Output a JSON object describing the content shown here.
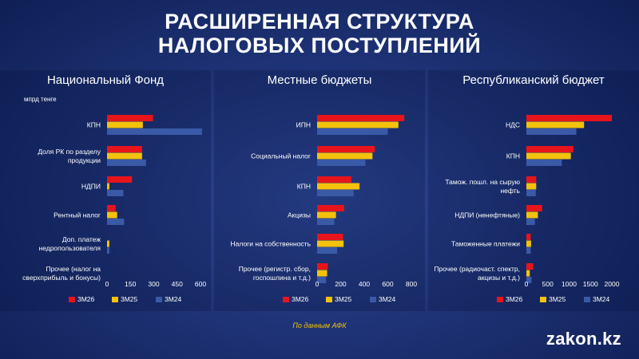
{
  "page": {
    "title_line1": "РАСШИРЕННАЯ СТРУКТУРА",
    "title_line2": "НАЛОГОВЫХ ПОСТУПЛЕНИЙ",
    "source": "По данным АФК",
    "logo": "zakon.kz"
  },
  "colors": {
    "3М26": "#e8141c",
    "3М25": "#f4c20d",
    "3М24": "#3a5aa8"
  },
  "chart_data": [
    {
      "type": "bar",
      "orientation": "horizontal",
      "title": "Национальный Фонд",
      "unit": "мпрд тенге",
      "categories": [
        "КПН",
        "Доля РК по разделу продукции",
        "НДПИ",
        "Рентный налог",
        "Доп. платеж недропользователя",
        "Прочее (налог на сверхприбыль и бонусы)"
      ],
      "category_lines": [
        [
          "КПН"
        ],
        [
          "Доля РК по разделу",
          "продукции"
        ],
        [
          "НДПИ"
        ],
        [
          "Рентный налог"
        ],
        [
          "Доп. платеж",
          "недропользователя"
        ],
        [
          "Прочее (налог на",
          "сверхприбыль и бонусы)"
        ]
      ],
      "series": [
        {
          "name": "3М26",
          "values": [
            295,
            225,
            160,
            55,
            0,
            0
          ]
        },
        {
          "name": "3М25",
          "values": [
            230,
            225,
            15,
            65,
            15,
            0
          ]
        },
        {
          "name": "3М24",
          "values": [
            610,
            250,
            105,
            110,
            15,
            0
          ]
        }
      ],
      "xlim": [
        0,
        600
      ],
      "xticks": [
        0,
        150,
        300,
        450,
        600
      ],
      "legend": "bottom"
    },
    {
      "type": "bar",
      "orientation": "horizontal",
      "title": "Местные бюджеты",
      "categories": [
        "ИПН",
        "Социальный налог",
        "КПН",
        "Акцизы",
        "Налоги на собственность",
        "Прочее (регистр. сбор, госпошлина и т.д.)"
      ],
      "category_lines": [
        [
          "ИПН"
        ],
        [
          "Социальный налог"
        ],
        [
          "КПН"
        ],
        [
          "Акцизы"
        ],
        [
          "Налоги на собственность"
        ],
        [
          "Прочее (регистр. сбор,",
          "госпошлина и т.д.)"
        ]
      ],
      "series": [
        {
          "name": "3М26",
          "values": [
            740,
            490,
            290,
            230,
            220,
            90
          ]
        },
        {
          "name": "3М25",
          "values": [
            690,
            470,
            360,
            160,
            225,
            85
          ]
        },
        {
          "name": "3М24",
          "values": [
            600,
            410,
            310,
            145,
            170,
            75
          ]
        }
      ],
      "xlim": [
        0,
        800
      ],
      "xticks": [
        0,
        200,
        400,
        600,
        800
      ],
      "legend": "bottom"
    },
    {
      "type": "bar",
      "orientation": "horizontal",
      "title": "Республиканский бюджет",
      "categories": [
        "НДС",
        "КПН",
        "Тамож. пошл. на сырую нефть",
        "НДПИ (ненефтяные)",
        "Таможенные платежи",
        "Прочее (радиочаст. спектр, акцизы и т.д.)"
      ],
      "category_lines": [
        [
          "НДС"
        ],
        [
          "КПН"
        ],
        [
          "Тамож. пошл. на сырую",
          "нефть"
        ],
        [
          "НДПИ (ненефтяные)"
        ],
        [
          "Таможенные платежи"
        ],
        [
          "Прочее (радиочаст. спектр,",
          "акцизы и т.д.)"
        ]
      ],
      "series": [
        {
          "name": "3М26",
          "values": [
            2000,
            1100,
            230,
            370,
            100,
            160
          ]
        },
        {
          "name": "3М25",
          "values": [
            1350,
            1040,
            230,
            270,
            110,
            80
          ]
        },
        {
          "name": "3М24",
          "values": [
            1170,
            830,
            220,
            200,
            100,
            120
          ]
        }
      ],
      "xlim": [
        0,
        2000
      ],
      "xticks": [
        0,
        500,
        1000,
        1500,
        2000
      ],
      "legend": "bottom"
    }
  ]
}
